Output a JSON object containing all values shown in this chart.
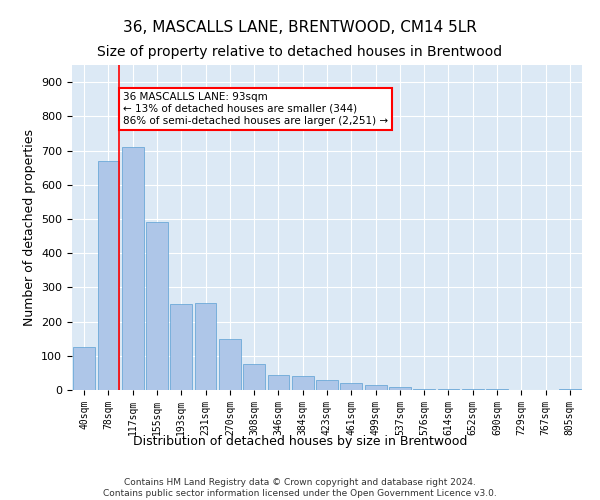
{
  "title": "36, MASCALLS LANE, BRENTWOOD, CM14 5LR",
  "subtitle": "Size of property relative to detached houses in Brentwood",
  "xlabel": "Distribution of detached houses by size in Brentwood",
  "ylabel": "Number of detached properties",
  "bar_labels": [
    "40sqm",
    "78sqm",
    "117sqm",
    "155sqm",
    "193sqm",
    "231sqm",
    "270sqm",
    "308sqm",
    "346sqm",
    "384sqm",
    "423sqm",
    "461sqm",
    "499sqm",
    "537sqm",
    "576sqm",
    "614sqm",
    "652sqm",
    "690sqm",
    "729sqm",
    "767sqm",
    "805sqm"
  ],
  "bar_values": [
    125,
    670,
    710,
    490,
    250,
    255,
    150,
    75,
    45,
    40,
    30,
    20,
    15,
    10,
    4,
    4,
    2,
    2,
    1,
    1,
    2
  ],
  "bar_color": "#aec6e8",
  "bar_edge_color": "#5a9fd4",
  "annotation_text": "36 MASCALLS LANE: 93sqm\n← 13% of detached houses are smaller (344)\n86% of semi-detached houses are larger (2,251) →",
  "annotation_box_color": "white",
  "annotation_box_edge": "red",
  "red_line_bar_index": 1,
  "ylim": [
    0,
    950
  ],
  "yticks": [
    0,
    100,
    200,
    300,
    400,
    500,
    600,
    700,
    800,
    900
  ],
  "background_color": "#dce9f5",
  "footer": "Contains HM Land Registry data © Crown copyright and database right 2024.\nContains public sector information licensed under the Open Government Licence v3.0.",
  "title_fontsize": 11,
  "subtitle_fontsize": 10,
  "xlabel_fontsize": 9,
  "ylabel_fontsize": 9,
  "tick_fontsize": 7,
  "ytick_fontsize": 8
}
